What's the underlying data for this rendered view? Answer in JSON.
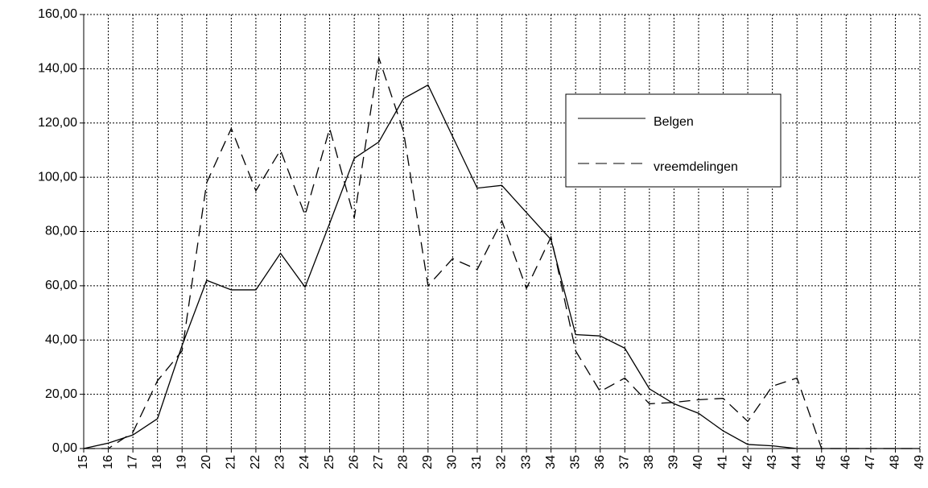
{
  "chart_data": {
    "type": "line",
    "categories": [
      "15",
      "16",
      "17",
      "18",
      "19",
      "20",
      "21",
      "22",
      "23",
      "24",
      "25",
      "26",
      "27",
      "28",
      "29",
      "30",
      "31",
      "32",
      "33",
      "34",
      "35",
      "36",
      "37",
      "38",
      "39",
      "40",
      "41",
      "42",
      "43",
      "44",
      "45",
      "46",
      "47",
      "48",
      "49"
    ],
    "series": [
      {
        "name": "Belgen",
        "color": "#000000",
        "line_style": "solid",
        "values": [
          0,
          2,
          5,
          11,
          38,
          62,
          58.5,
          58.5,
          72,
          59.5,
          83,
          107,
          113,
          129,
          134,
          115,
          96,
          97,
          87,
          77,
          42,
          41.5,
          37,
          22,
          16.5,
          13,
          6.5,
          1.5,
          1,
          0,
          0,
          0,
          0,
          0,
          0
        ]
      },
      {
        "name": "vreemdelingen",
        "color": "#000000",
        "line_style": "dashed",
        "values": [
          0,
          0,
          6,
          25,
          36,
          98,
          118,
          95,
          110,
          86,
          118,
          85,
          144,
          117,
          60,
          70,
          66,
          84,
          59,
          78,
          36,
          21,
          26,
          16.5,
          17,
          18,
          18.5,
          10,
          23,
          26,
          0,
          0,
          0,
          0,
          0
        ]
      }
    ],
    "ylim": [
      0,
      160
    ],
    "yticks": [
      {
        "value": 0,
        "label": "0,00"
      },
      {
        "value": 20,
        "label": "20,00"
      },
      {
        "value": 40,
        "label": "40,00"
      },
      {
        "value": 60,
        "label": "60,00"
      },
      {
        "value": 80,
        "label": "80,00"
      },
      {
        "value": 100,
        "label": "100,00"
      },
      {
        "value": 120,
        "label": "120,00"
      },
      {
        "value": 140,
        "label": "140,00"
      },
      {
        "value": 160,
        "label": "160,00"
      }
    ],
    "grid": true,
    "legend": "upper right"
  }
}
